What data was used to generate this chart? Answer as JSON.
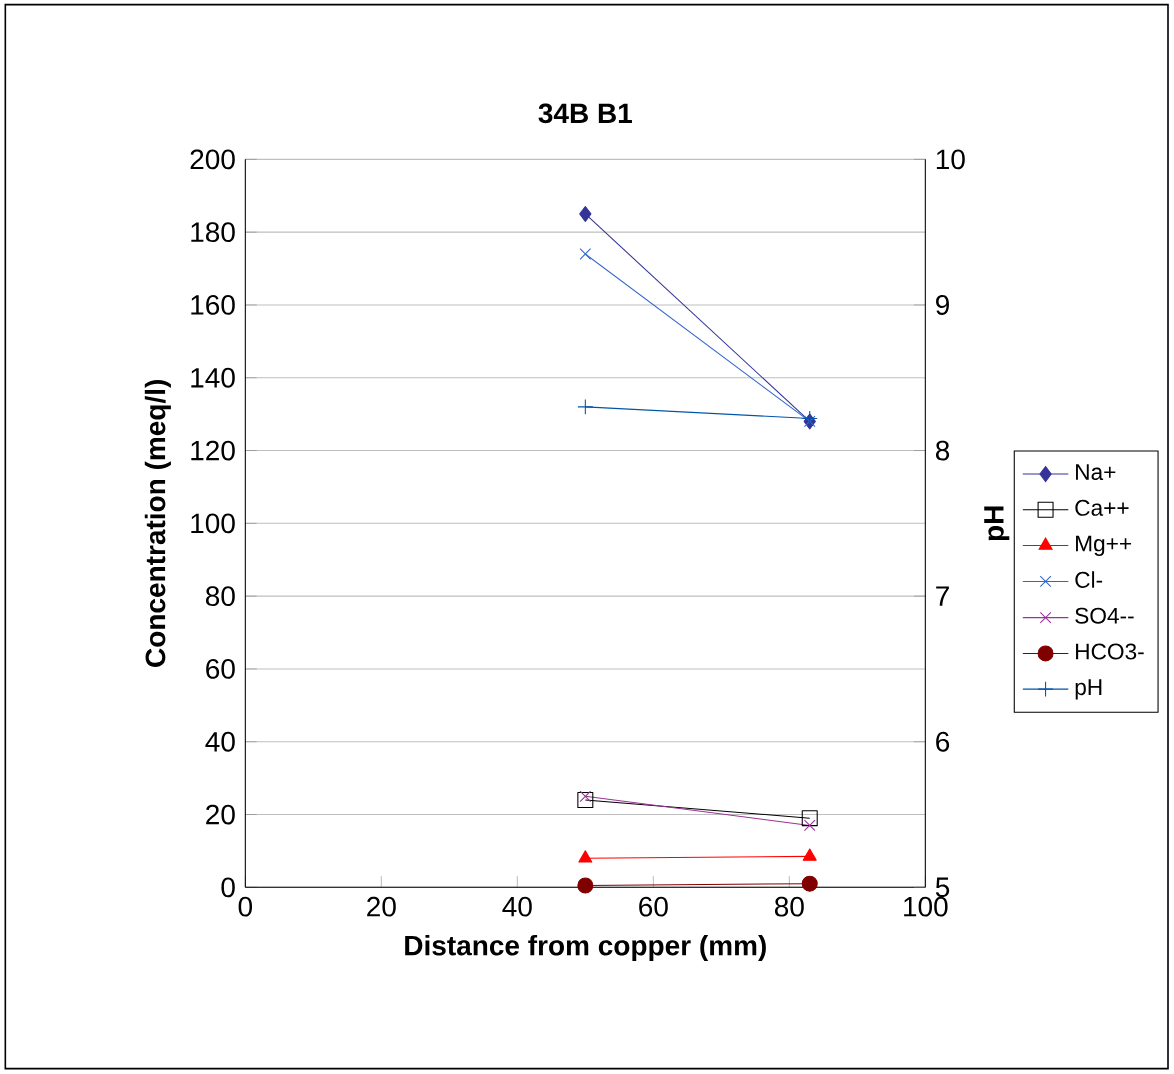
{
  "chart_data": {
    "type": "line",
    "title": "34B B1",
    "xlabel": "Distance from copper  (mm)",
    "ylabel": "Concentration  (meq/l)",
    "y2label": "pH",
    "xlim": [
      0,
      100
    ],
    "xticks": [
      0,
      20,
      40,
      60,
      80,
      100
    ],
    "ylim": [
      0,
      200
    ],
    "yticks": [
      0,
      20,
      40,
      60,
      80,
      100,
      120,
      140,
      160,
      180,
      200
    ],
    "y2lim": [
      5,
      10
    ],
    "y2ticks": [
      5,
      6,
      7,
      8,
      9,
      10
    ],
    "grid": "y",
    "legend": "right",
    "x": [
      50,
      83
    ],
    "series": [
      {
        "name": "Na+",
        "color": "#333399",
        "marker": "diamond",
        "values": [
          185,
          128
        ]
      },
      {
        "name": "Ca++",
        "color": "#000000",
        "marker": "square",
        "values": [
          24,
          19
        ]
      },
      {
        "name": "Mg++",
        "color": "#ff0000",
        "marker": "triangle",
        "values": [
          8,
          8.5
        ]
      },
      {
        "name": "Cl-",
        "color": "#3366cc",
        "marker": "cross",
        "values": [
          174,
          128
        ]
      },
      {
        "name": "SO4--",
        "color": "#993399",
        "marker": "cross",
        "values": [
          25,
          17
        ]
      },
      {
        "name": "HCO3-",
        "color": "#800000",
        "marker": "circle",
        "values": [
          0.5,
          1
        ]
      },
      {
        "name": "pH",
        "color": "#0055aa",
        "marker": "plus",
        "axis": "y2",
        "values": [
          8.3,
          8.22
        ]
      }
    ]
  }
}
